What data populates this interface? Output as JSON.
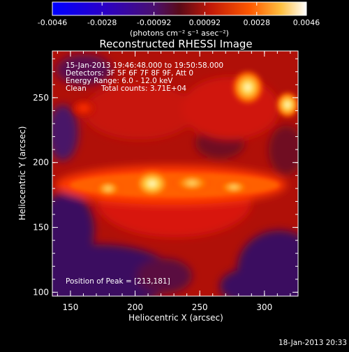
{
  "colorbar": {
    "tick_labels": [
      "-0.0046",
      "-0.0028",
      "-0.00092",
      "0.00092",
      "0.0028",
      "0.0046"
    ],
    "tick_values": [
      -0.0046,
      -0.0028,
      -0.00092,
      0.00092,
      0.0028,
      0.0046
    ],
    "range": [
      -0.0046,
      0.0046
    ],
    "unit_label": "(photons cm⁻² s⁻¹ asec⁻²)",
    "colormap": "rhessi-blue-purple-red-yellow-white"
  },
  "title": "Reconstructed RHESSI Image",
  "info": {
    "time_range": "15-Jan-2013 19:46:48.000 to 19:50:58.000",
    "detectors": "Detectors: 3F 5F 6F 7F 8F 9F, Att 0",
    "energy_range": "Energy Range: 6.0 - 12.0 keV",
    "method": "Clean",
    "total_counts": "Total counts: 3.71E+04"
  },
  "peak_text": "Position of Peak = [213,181]",
  "x_axis": {
    "label": "Heliocentric X (arcsec)",
    "ticks": [
      "150",
      "200",
      "250",
      "300"
    ],
    "values": [
      150,
      200,
      250,
      300
    ],
    "range": [
      136,
      326
    ]
  },
  "y_axis": {
    "label": "Heliocentric Y (arcsec)",
    "ticks": [
      "100",
      "150",
      "200",
      "250"
    ],
    "values": [
      100,
      150,
      200,
      250
    ],
    "range": [
      97,
      286
    ]
  },
  "peak_position": [
    213,
    181
  ],
  "footer_date": "18-Jan-2013 20:33",
  "colors": {
    "background": "#000000",
    "text": "#ffffff"
  }
}
